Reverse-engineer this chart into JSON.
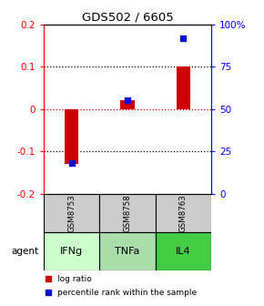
{
  "title": "GDS502 / 6605",
  "samples": [
    "GSM8753",
    "GSM8758",
    "GSM8763"
  ],
  "agents": [
    "IFNg",
    "TNFa",
    "IL4"
  ],
  "log_ratios": [
    -0.13,
    0.02,
    0.1
  ],
  "percentile_ranks": [
    18,
    55,
    92
  ],
  "bar_color": "#cc0000",
  "dot_color": "#1111cc",
  "ylim_left": [
    -0.2,
    0.2
  ],
  "ylim_right": [
    0,
    100
  ],
  "yticks_left": [
    -0.2,
    -0.1,
    0.0,
    0.1,
    0.2
  ],
  "yticks_right": [
    0,
    25,
    50,
    75,
    100
  ],
  "ytick_labels_left": [
    "-0.2",
    "-0.1",
    "0",
    "0.1",
    "0.2"
  ],
  "ytick_labels_right": [
    "0",
    "25",
    "50",
    "75",
    "100%"
  ],
  "agent_colors": [
    "#ccffcc",
    "#aaddaa",
    "#44cc44"
  ],
  "sample_bg_color": "#cccccc",
  "legend_log_ratio": "log ratio",
  "legend_percentile": "percentile rank within the sample",
  "agent_label": "agent",
  "bar_width": 0.25
}
